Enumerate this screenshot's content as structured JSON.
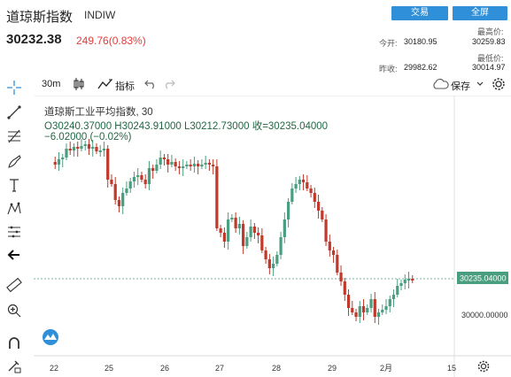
{
  "header": {
    "title": "道琼斯指数",
    "code": "INDIW",
    "trade_button": "交易",
    "fullscreen_button": "全屏",
    "last_price": "30232.38",
    "change": "249.76(0.83%)",
    "open_label": "今开:",
    "open_value": "30180.95",
    "prev_close_label": "昨收:",
    "prev_close_value": "29982.62",
    "high_label": "最高价:",
    "high_value": "30259.83",
    "low_label": "最低价:",
    "low_value": "30014.97"
  },
  "toolbar": {
    "interval": "30m",
    "indicator_label": "指标",
    "save_label": "保存"
  },
  "legend": {
    "symbol_line": "道琼斯工业平均指数, 30",
    "ohlc_line": "O30240.37000   H30243.91000   L30212.73000   收=30235.04000",
    "change_line": "−6.02000 (−0.02%)"
  },
  "colors": {
    "up": "#4a9e80",
    "down": "#c0392b",
    "accent": "#2f8fd8",
    "change_red": "#e03c3c"
  },
  "chart_data": {
    "type": "candlestick",
    "x_tick_labels": [
      "22",
      "25",
      "26",
      "27",
      "28",
      "29",
      "2月",
      "15"
    ],
    "price_labels": [
      "30235.04000",
      "30000.00000"
    ],
    "current_price": 30235.04
  }
}
